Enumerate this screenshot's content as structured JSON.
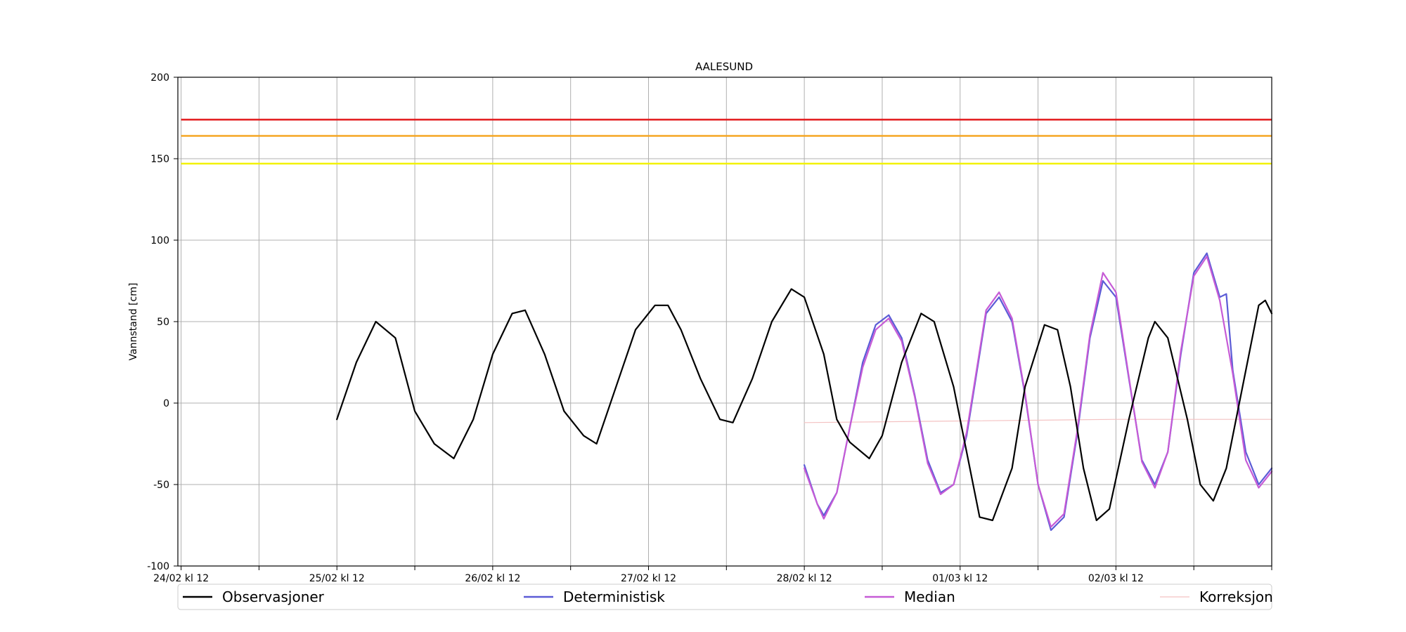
{
  "chart_data": {
    "type": "line",
    "title": "AALESUND",
    "xlabel": "",
    "ylabel": "Vannstand [cm]",
    "ylim": [
      -100,
      200
    ],
    "xlim_hours": [
      -0.5,
      168
    ],
    "x_unit": "hours after 24/02 kl 12",
    "yticks": [
      -100,
      -50,
      0,
      50,
      100,
      150,
      200
    ],
    "xtick_labels": [
      "24/02 kl 12",
      "25/02 kl 12",
      "26/02 kl 12",
      "27/02 kl 12",
      "28/02 kl 12",
      "01/03 kl 12",
      "02/03 kl 12"
    ],
    "grid": true,
    "legend_position": "bottom",
    "thresholds": [
      {
        "value": 174,
        "color": "#e31a1c"
      },
      {
        "value": 164,
        "color": "#f5a623"
      },
      {
        "value": 147,
        "color": "#f2f200"
      }
    ],
    "series": [
      {
        "name": "Observasjoner",
        "color": "#000000",
        "points": [
          [
            24,
            -10
          ],
          [
            27,
            25
          ],
          [
            30,
            50
          ],
          [
            33,
            40
          ],
          [
            36,
            -5
          ],
          [
            39,
            -25
          ],
          [
            42,
            -34
          ],
          [
            45,
            -10
          ],
          [
            48,
            30
          ],
          [
            51,
            55
          ],
          [
            53,
            57
          ],
          [
            56,
            30
          ],
          [
            59,
            -5
          ],
          [
            62,
            -20
          ],
          [
            64,
            -25
          ],
          [
            67,
            10
          ],
          [
            70,
            45
          ],
          [
            73,
            60
          ],
          [
            75,
            60
          ],
          [
            77,
            45
          ],
          [
            80,
            15
          ],
          [
            83,
            -10
          ],
          [
            85,
            -12
          ],
          [
            88,
            15
          ],
          [
            91,
            50
          ],
          [
            94,
            70
          ],
          [
            96,
            65
          ],
          [
            99,
            30
          ],
          [
            101,
            -10
          ],
          [
            103,
            -24
          ],
          [
            106,
            -34
          ],
          [
            108,
            -20
          ],
          [
            111,
            25
          ],
          [
            114,
            55
          ],
          [
            116,
            50
          ],
          [
            119,
            10
          ],
          [
            121,
            -30
          ],
          [
            123,
            -70
          ],
          [
            125,
            -72
          ],
          [
            128,
            -40
          ],
          [
            130,
            10
          ],
          [
            133,
            48
          ],
          [
            135,
            45
          ],
          [
            137,
            10
          ],
          [
            139,
            -40
          ],
          [
            141,
            -72
          ],
          [
            143,
            -65
          ],
          [
            146,
            -10
          ],
          [
            149,
            40
          ],
          [
            150,
            50
          ],
          [
            152,
            40
          ],
          [
            155,
            -10
          ],
          [
            157,
            -50
          ],
          [
            159,
            -60
          ],
          [
            161,
            -40
          ],
          [
            164,
            20
          ],
          [
            166,
            60
          ],
          [
            167,
            63
          ],
          [
            168,
            55
          ]
        ]
      },
      {
        "name": "Deterministisk",
        "color": "#5b5bd6",
        "points": [
          [
            96,
            -38
          ],
          [
            98,
            -62
          ],
          [
            99,
            -69
          ],
          [
            101,
            -55
          ],
          [
            103,
            -15
          ],
          [
            105,
            25
          ],
          [
            107,
            48
          ],
          [
            109,
            54
          ],
          [
            111,
            40
          ],
          [
            113,
            5
          ],
          [
            115,
            -35
          ],
          [
            117,
            -55
          ],
          [
            119,
            -50
          ],
          [
            121,
            -20
          ],
          [
            123,
            30
          ],
          [
            124,
            55
          ],
          [
            126,
            65
          ],
          [
            128,
            50
          ],
          [
            130,
            5
          ],
          [
            132,
            -50
          ],
          [
            134,
            -78
          ],
          [
            136,
            -70
          ],
          [
            138,
            -20
          ],
          [
            140,
            40
          ],
          [
            142,
            75
          ],
          [
            144,
            65
          ],
          [
            146,
            15
          ],
          [
            148,
            -35
          ],
          [
            150,
            -50
          ],
          [
            152,
            -30
          ],
          [
            154,
            30
          ],
          [
            156,
            80
          ],
          [
            158,
            92
          ],
          [
            160,
            65
          ],
          [
            161,
            67
          ],
          [
            162,
            20
          ],
          [
            164,
            -30
          ],
          [
            166,
            -50
          ],
          [
            168,
            -40
          ]
        ]
      },
      {
        "name": "Median",
        "color": "#c65bd6",
        "points": [
          [
            96,
            -40
          ],
          [
            98,
            -62
          ],
          [
            99,
            -71
          ],
          [
            101,
            -55
          ],
          [
            103,
            -15
          ],
          [
            105,
            22
          ],
          [
            107,
            45
          ],
          [
            109,
            52
          ],
          [
            111,
            38
          ],
          [
            113,
            4
          ],
          [
            115,
            -37
          ],
          [
            117,
            -56
          ],
          [
            119,
            -50
          ],
          [
            121,
            -18
          ],
          [
            123,
            32
          ],
          [
            124,
            57
          ],
          [
            126,
            68
          ],
          [
            128,
            52
          ],
          [
            130,
            6
          ],
          [
            132,
            -50
          ],
          [
            134,
            -76
          ],
          [
            136,
            -68
          ],
          [
            138,
            -18
          ],
          [
            140,
            42
          ],
          [
            142,
            80
          ],
          [
            144,
            68
          ],
          [
            146,
            16
          ],
          [
            148,
            -36
          ],
          [
            150,
            -52
          ],
          [
            152,
            -30
          ],
          [
            154,
            32
          ],
          [
            156,
            78
          ],
          [
            158,
            90
          ],
          [
            160,
            63
          ],
          [
            162,
            18
          ],
          [
            164,
            -35
          ],
          [
            166,
            -52
          ],
          [
            168,
            -42
          ]
        ]
      },
      {
        "name": "Korreksjon",
        "color": "#f4c2c2",
        "points": [
          [
            96,
            -12
          ],
          [
            120,
            -11
          ],
          [
            144,
            -10
          ],
          [
            168,
            -10
          ]
        ]
      }
    ]
  }
}
